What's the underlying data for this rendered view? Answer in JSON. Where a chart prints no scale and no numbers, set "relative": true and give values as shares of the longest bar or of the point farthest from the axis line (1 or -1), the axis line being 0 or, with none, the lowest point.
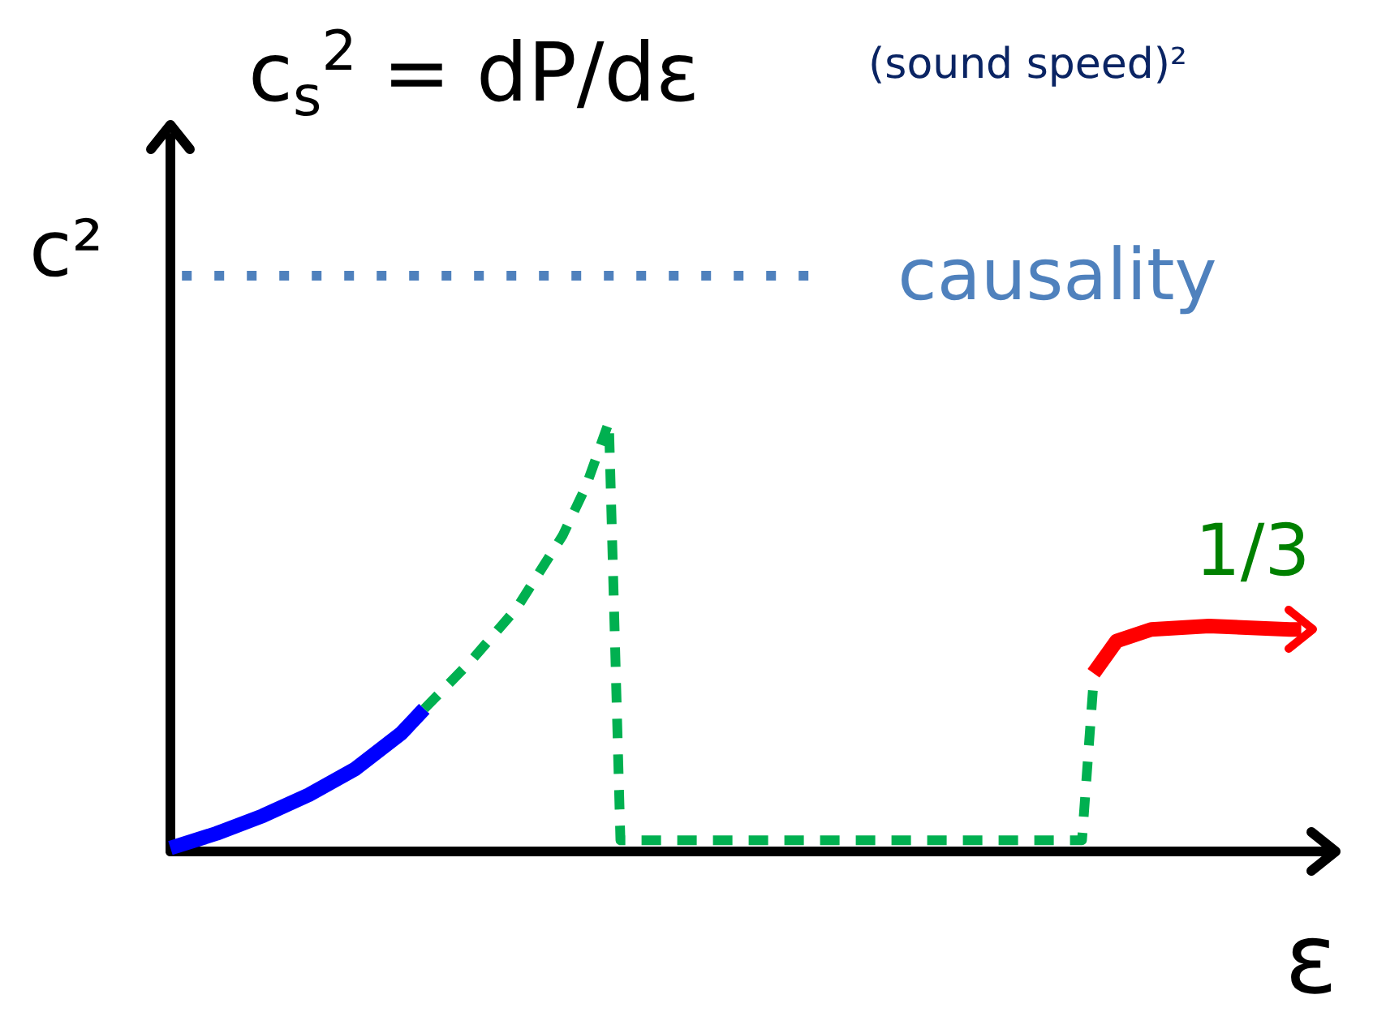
{
  "chart_data": {
    "type": "line",
    "relative": true,
    "title": "c$_{s}$$^{2}$ = dP/dε",
    "subtitle": "(sound speed)²",
    "xlabel": "ε",
    "ylabel": "c²",
    "categories": [
      null,
      null,
      null,
      null,
      null,
      null,
      null,
      null,
      null,
      null,
      null,
      null,
      null,
      null,
      null,
      null,
      null,
      null,
      null,
      null,
      null,
      null,
      null,
      null,
      null,
      null,
      null,
      null,
      null,
      null,
      null,
      null,
      null,
      null,
      null,
      null,
      null,
      null,
      null,
      null,
      null,
      null,
      null,
      null,
      null,
      null,
      null,
      null,
      null,
      null,
      null,
      null,
      null,
      null,
      null,
      null,
      null,
      null,
      null,
      null,
      null,
      null,
      null,
      null,
      null,
      null,
      null,
      null,
      null,
      null,
      null,
      null,
      null,
      null,
      null,
      null,
      null,
      null,
      null,
      null,
      null,
      null,
      null,
      null,
      null,
      null,
      null,
      null,
      null,
      null,
      null,
      null,
      null,
      null,
      null,
      null,
      null,
      null,
      null,
      null,
      null
    ],
    "series": [
      {
        "color": "#0000ff",
        "line_style": "solid",
        "values": [
          0.008,
          null,
          null,
          null,
          0.042,
          null,
          null,
          null,
          0.083,
          null,
          null,
          null,
          0.132,
          null,
          null,
          null,
          0.192,
          null,
          null,
          null,
          0.275,
          null,
          0.332,
          null,
          null,
          null,
          null,
          null,
          null,
          null,
          null,
          null,
          null,
          null,
          null,
          null,
          null,
          null,
          null,
          null,
          null,
          null,
          null,
          null,
          null,
          null,
          null,
          null,
          null,
          null,
          null,
          null,
          null,
          null,
          null,
          null,
          null,
          null,
          null,
          null,
          null,
          null,
          null,
          null,
          null,
          null,
          null,
          null,
          null,
          null,
          null,
          null,
          null,
          null,
          null,
          null,
          null,
          null,
          null,
          null,
          null,
          null,
          null,
          null,
          null,
          null,
          null,
          null,
          null,
          null,
          null,
          null,
          null,
          null,
          null,
          null,
          null,
          null,
          null,
          null,
          null
        ]
      },
      {
        "color": "#00b050",
        "line_style": "dashed",
        "values": [
          null,
          null,
          null,
          null,
          null,
          null,
          null,
          null,
          null,
          null,
          null,
          null,
          null,
          null,
          null,
          null,
          null,
          null,
          null,
          null,
          null,
          null,
          0.332,
          null,
          null,
          null,
          0.442,
          null,
          null,
          null,
          0.566,
          null,
          null,
          null,
          0.736,
          null,
          0.849,
          null,
          1,
          0.026,
          null,
          null,
          null,
          null,
          null,
          null,
          null,
          null,
          null,
          null,
          null,
          null,
          null,
          null,
          null,
          null,
          null,
          null,
          null,
          null,
          null,
          null,
          null,
          null,
          null,
          null,
          null,
          null,
          null,
          null,
          null,
          null,
          null,
          null,
          null,
          null,
          null,
          null,
          null,
          0.026,
          0.396,
          null,
          null,
          null,
          null,
          null,
          null,
          null,
          null,
          null,
          null,
          null,
          null,
          null,
          null,
          null,
          null,
          null,
          null,
          null,
          null
        ]
      },
      {
        "color": "#ff0000",
        "line_style": "solid",
        "values": [
          null,
          null,
          null,
          null,
          null,
          null,
          null,
          null,
          null,
          null,
          null,
          null,
          null,
          null,
          null,
          null,
          null,
          null,
          null,
          null,
          null,
          null,
          null,
          null,
          null,
          null,
          null,
          null,
          null,
          null,
          null,
          null,
          null,
          null,
          null,
          null,
          null,
          null,
          null,
          null,
          null,
          null,
          null,
          null,
          null,
          null,
          null,
          null,
          null,
          null,
          null,
          null,
          null,
          null,
          null,
          null,
          null,
          null,
          null,
          null,
          null,
          null,
          null,
          null,
          null,
          null,
          null,
          null,
          null,
          null,
          null,
          null,
          null,
          null,
          null,
          null,
          null,
          null,
          null,
          null,
          0.415,
          null,
          0.49,
          null,
          null,
          0.517,
          null,
          null,
          null,
          null,
          0.525,
          null,
          null,
          null,
          null,
          null,
          null,
          0.517,
          0.517,
          null,
          null
        ]
      }
    ],
    "ref_lines": [
      {
        "axis": "y",
        "value": 1.34,
        "label": "causality",
        "color": "#4f81bd",
        "line_style": "dotted"
      }
    ],
    "annotations": [
      "1/3"
    ],
    "marker": "none",
    "grid": false
  }
}
